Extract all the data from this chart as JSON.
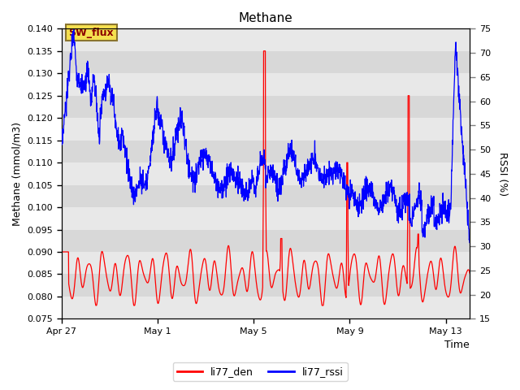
{
  "title": "Methane",
  "xlabel": "Time",
  "ylabel_left": "Methane (mmol/m3)",
  "ylabel_right": "RSSI (%)",
  "ylim_left": [
    0.075,
    0.14
  ],
  "ylim_right": [
    15,
    75
  ],
  "yticks_left": [
    0.075,
    0.08,
    0.085,
    0.09,
    0.095,
    0.1,
    0.105,
    0.11,
    0.115,
    0.12,
    0.125,
    0.13,
    0.135,
    0.14
  ],
  "yticks_right": [
    15,
    20,
    25,
    30,
    35,
    40,
    45,
    50,
    55,
    60,
    65,
    70,
    75
  ],
  "xtick_labels": [
    "Apr 27",
    "May 1",
    "May 5",
    "May 9",
    "May 13"
  ],
  "xtick_positions": [
    0,
    4,
    8,
    12,
    16
  ],
  "annotation_text": "SW_flux",
  "legend_labels": [
    "li77_den",
    "li77_rssi"
  ],
  "band_colors": [
    "#e8e8e8",
    "#d8d8d8"
  ],
  "background_color": "#e8e8e8",
  "xlim": [
    0,
    17
  ],
  "title_fontsize": 11,
  "label_fontsize": 9,
  "tick_fontsize": 8
}
